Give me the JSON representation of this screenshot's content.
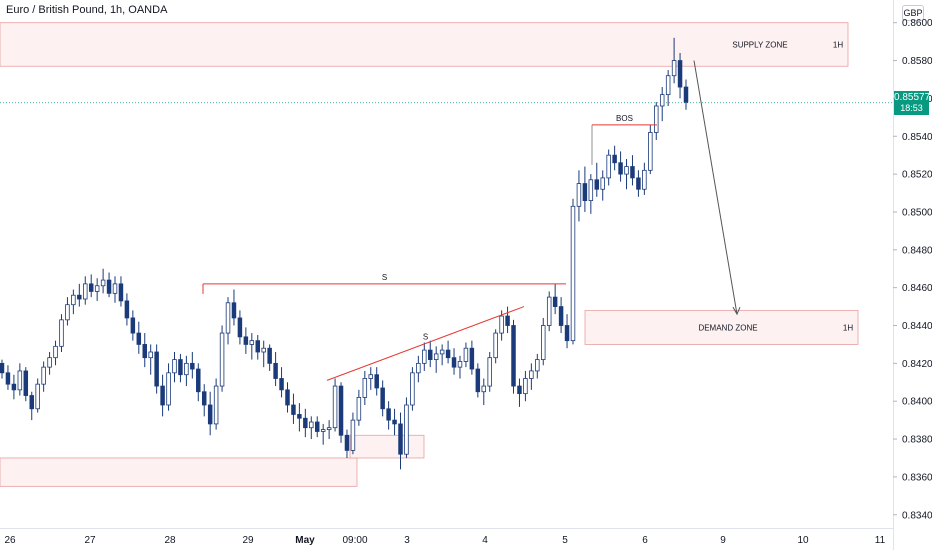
{
  "header": {
    "title": "Euro / British Pound, 1h, OANDA",
    "currency": "GBP"
  },
  "price_tag": {
    "price": "0.85577",
    "countdown": "18:53",
    "color": "#089981"
  },
  "colors": {
    "up": "#ffffff",
    "down": "#1a3a7a",
    "wick": "#1a3a7a",
    "zone_fill": "#fdeeee",
    "zone_border": "#e8a0a0",
    "line": "#e53935",
    "arrow": "#555555"
  },
  "chart_data": {
    "type": "candlestick",
    "symbol": "EUR/GBP",
    "interval": "1h",
    "ylim": [
      0.8333,
      0.8612
    ],
    "y_ticks": [
      "0.86000",
      "0.85800",
      "0.85600",
      "0.85400",
      "0.85200",
      "0.85000",
      "0.84800",
      "0.84600",
      "0.84400",
      "0.84200",
      "0.84000",
      "0.83800",
      "0.83600",
      "0.83400"
    ],
    "x_ticks": [
      "26",
      "27",
      "28",
      "29",
      "May",
      "09:00",
      "3",
      "4",
      "5",
      "6",
      "9",
      "10",
      "11"
    ],
    "current_price": 0.85577,
    "zones": [
      {
        "label": "SUPPLY ZONE",
        "timeframe": "1H",
        "top": 0.86,
        "bottom": 0.8577
      },
      {
        "label": "DEMAND ZONE",
        "timeframe": "1H",
        "top": 0.8448,
        "bottom": 0.843
      },
      {
        "label": "",
        "timeframe": "",
        "top": 0.837,
        "bottom": 0.8355
      },
      {
        "label": "",
        "timeframe": "",
        "top": 0.8382,
        "bottom": 0.837
      }
    ],
    "annotations": [
      {
        "type": "structure",
        "label": "S",
        "price_start": 0.8462,
        "price_end": 0.8462
      },
      {
        "type": "structure",
        "label": "S",
        "price_start": 0.8411,
        "price_end": 0.845
      },
      {
        "type": "structure",
        "label": "BOS",
        "price_start": 0.8546,
        "price_end": 0.8546
      },
      {
        "type": "projection",
        "label": "",
        "price_start": 0.858,
        "price_end": 0.8446
      }
    ],
    "ohlc": [
      [
        0.842,
        0.8422,
        0.8412,
        0.8415
      ],
      [
        0.8415,
        0.8419,
        0.8406,
        0.8409
      ],
      [
        0.8409,
        0.8414,
        0.8401,
        0.8406
      ],
      [
        0.8406,
        0.842,
        0.8403,
        0.8416
      ],
      [
        0.8416,
        0.8418,
        0.84,
        0.8403
      ],
      [
        0.8403,
        0.8405,
        0.839,
        0.8396
      ],
      [
        0.8396,
        0.8412,
        0.8394,
        0.8409
      ],
      [
        0.8409,
        0.8421,
        0.8405,
        0.8418
      ],
      [
        0.8418,
        0.8426,
        0.8414,
        0.8423
      ],
      [
        0.8423,
        0.8432,
        0.8419,
        0.8429
      ],
      [
        0.8429,
        0.8446,
        0.8426,
        0.8443
      ],
      [
        0.8443,
        0.8455,
        0.844,
        0.8451
      ],
      [
        0.8451,
        0.8459,
        0.8446,
        0.8456
      ],
      [
        0.8456,
        0.8462,
        0.845,
        0.8454
      ],
      [
        0.8454,
        0.8466,
        0.8451,
        0.8462
      ],
      [
        0.8462,
        0.8467,
        0.8455,
        0.8458
      ],
      [
        0.8458,
        0.8465,
        0.8453,
        0.8461
      ],
      [
        0.8461,
        0.847,
        0.8457,
        0.8464
      ],
      [
        0.8464,
        0.8468,
        0.8455,
        0.8457
      ],
      [
        0.8457,
        0.8466,
        0.8452,
        0.8462
      ],
      [
        0.8462,
        0.8466,
        0.845,
        0.8453
      ],
      [
        0.8453,
        0.8457,
        0.844,
        0.8444
      ],
      [
        0.8444,
        0.8448,
        0.8432,
        0.8436
      ],
      [
        0.8436,
        0.8442,
        0.8425,
        0.843
      ],
      [
        0.843,
        0.8436,
        0.8418,
        0.8423
      ],
      [
        0.8423,
        0.843,
        0.8414,
        0.8426
      ],
      [
        0.8426,
        0.843,
        0.8404,
        0.8408
      ],
      [
        0.8408,
        0.8414,
        0.8392,
        0.8398
      ],
      [
        0.8398,
        0.842,
        0.8395,
        0.8415
      ],
      [
        0.8415,
        0.8426,
        0.841,
        0.8422
      ],
      [
        0.8422,
        0.8425,
        0.841,
        0.8414
      ],
      [
        0.8414,
        0.8424,
        0.8408,
        0.842
      ],
      [
        0.842,
        0.8426,
        0.8412,
        0.8417
      ],
      [
        0.8417,
        0.842,
        0.84,
        0.8405
      ],
      [
        0.8405,
        0.8409,
        0.8392,
        0.8398
      ],
      [
        0.8398,
        0.8405,
        0.8382,
        0.8388
      ],
      [
        0.8388,
        0.8412,
        0.8385,
        0.8408
      ],
      [
        0.8408,
        0.844,
        0.8405,
        0.8436
      ],
      [
        0.8436,
        0.8455,
        0.843,
        0.8452
      ],
      [
        0.8452,
        0.8459,
        0.844,
        0.8444
      ],
      [
        0.8444,
        0.8448,
        0.843,
        0.8434
      ],
      [
        0.8434,
        0.8439,
        0.8425,
        0.843
      ],
      [
        0.843,
        0.8436,
        0.8422,
        0.8432
      ],
      [
        0.8432,
        0.8435,
        0.8422,
        0.8426
      ],
      [
        0.8426,
        0.8432,
        0.8418,
        0.8428
      ],
      [
        0.8428,
        0.843,
        0.8416,
        0.842
      ],
      [
        0.842,
        0.8426,
        0.8408,
        0.8412
      ],
      [
        0.8412,
        0.8418,
        0.8402,
        0.8406
      ],
      [
        0.8406,
        0.841,
        0.8394,
        0.8398
      ],
      [
        0.8398,
        0.8404,
        0.8388,
        0.8393
      ],
      [
        0.8393,
        0.8399,
        0.8384,
        0.8391
      ],
      [
        0.8391,
        0.8396,
        0.8381,
        0.8386
      ],
      [
        0.8386,
        0.8392,
        0.838,
        0.8389
      ],
      [
        0.8389,
        0.8392,
        0.8381,
        0.8384
      ],
      [
        0.8384,
        0.8388,
        0.8377,
        0.8385
      ],
      [
        0.8385,
        0.839,
        0.838,
        0.8386
      ],
      [
        0.8386,
        0.8412,
        0.8384,
        0.8408
      ],
      [
        0.8408,
        0.841,
        0.8378,
        0.8382
      ],
      [
        0.8382,
        0.8385,
        0.837,
        0.8374
      ],
      [
        0.8374,
        0.8394,
        0.8372,
        0.839
      ],
      [
        0.839,
        0.8406,
        0.8387,
        0.8402
      ],
      [
        0.8402,
        0.8416,
        0.8398,
        0.8412
      ],
      [
        0.8412,
        0.8418,
        0.8406,
        0.8414
      ],
      [
        0.8414,
        0.8418,
        0.8403,
        0.8407
      ],
      [
        0.8407,
        0.8411,
        0.8392,
        0.8396
      ],
      [
        0.8396,
        0.84,
        0.8385,
        0.839
      ],
      [
        0.839,
        0.8396,
        0.8382,
        0.8388
      ],
      [
        0.8388,
        0.8394,
        0.8364,
        0.8372
      ],
      [
        0.8372,
        0.8402,
        0.837,
        0.8398
      ],
      [
        0.8398,
        0.8418,
        0.8395,
        0.8415
      ],
      [
        0.8415,
        0.8424,
        0.841,
        0.842
      ],
      [
        0.842,
        0.8431,
        0.8416,
        0.8427
      ],
      [
        0.8427,
        0.8432,
        0.8418,
        0.8422
      ],
      [
        0.8422,
        0.8429,
        0.8415,
        0.8425
      ],
      [
        0.8425,
        0.843,
        0.8419,
        0.8427
      ],
      [
        0.8427,
        0.8432,
        0.842,
        0.8423
      ],
      [
        0.8423,
        0.8428,
        0.8414,
        0.8418
      ],
      [
        0.8418,
        0.8424,
        0.8412,
        0.8421
      ],
      [
        0.8421,
        0.8431,
        0.8418,
        0.8428
      ],
      [
        0.8428,
        0.8432,
        0.8414,
        0.8417
      ],
      [
        0.8417,
        0.842,
        0.8402,
        0.8405
      ],
      [
        0.8405,
        0.8412,
        0.8398,
        0.8408
      ],
      [
        0.8408,
        0.8426,
        0.8405,
        0.8423
      ],
      [
        0.8423,
        0.8438,
        0.842,
        0.8436
      ],
      [
        0.8436,
        0.8448,
        0.8432,
        0.8445
      ],
      [
        0.8445,
        0.845,
        0.8436,
        0.844
      ],
      [
        0.844,
        0.8443,
        0.8404,
        0.8408
      ],
      [
        0.8408,
        0.8412,
        0.8397,
        0.8404
      ],
      [
        0.8404,
        0.8416,
        0.84,
        0.8412
      ],
      [
        0.8412,
        0.842,
        0.8406,
        0.8416
      ],
      [
        0.8416,
        0.8425,
        0.8412,
        0.8422
      ],
      [
        0.8422,
        0.8444,
        0.8419,
        0.844
      ],
      [
        0.844,
        0.8458,
        0.8437,
        0.8455
      ],
      [
        0.8455,
        0.8462,
        0.8446,
        0.845
      ],
      [
        0.845,
        0.8455,
        0.8436,
        0.844
      ],
      [
        0.844,
        0.8446,
        0.8428,
        0.8432
      ],
      [
        0.8432,
        0.8507,
        0.843,
        0.8503
      ],
      [
        0.8503,
        0.8522,
        0.8495,
        0.8515
      ],
      [
        0.8515,
        0.8524,
        0.85,
        0.8506
      ],
      [
        0.8506,
        0.852,
        0.8499,
        0.8517
      ],
      [
        0.8517,
        0.8526,
        0.8508,
        0.8512
      ],
      [
        0.8512,
        0.8522,
        0.8506,
        0.8518
      ],
      [
        0.8518,
        0.8533,
        0.8514,
        0.853
      ],
      [
        0.853,
        0.8535,
        0.8522,
        0.8526
      ],
      [
        0.8526,
        0.8532,
        0.8516,
        0.852
      ],
      [
        0.852,
        0.8528,
        0.8512,
        0.8524
      ],
      [
        0.8524,
        0.853,
        0.8514,
        0.8518
      ],
      [
        0.8518,
        0.8522,
        0.8508,
        0.8512
      ],
      [
        0.8512,
        0.8526,
        0.8509,
        0.8522
      ],
      [
        0.8522,
        0.8546,
        0.852,
        0.8542
      ],
      [
        0.8542,
        0.8558,
        0.8538,
        0.8556
      ],
      [
        0.8556,
        0.8566,
        0.8548,
        0.8562
      ],
      [
        0.8562,
        0.8575,
        0.8556,
        0.8572
      ],
      [
        0.8572,
        0.8592,
        0.8568,
        0.858
      ],
      [
        0.858,
        0.8584,
        0.856,
        0.8566
      ],
      [
        0.8566,
        0.857,
        0.8554,
        0.8558
      ]
    ]
  }
}
